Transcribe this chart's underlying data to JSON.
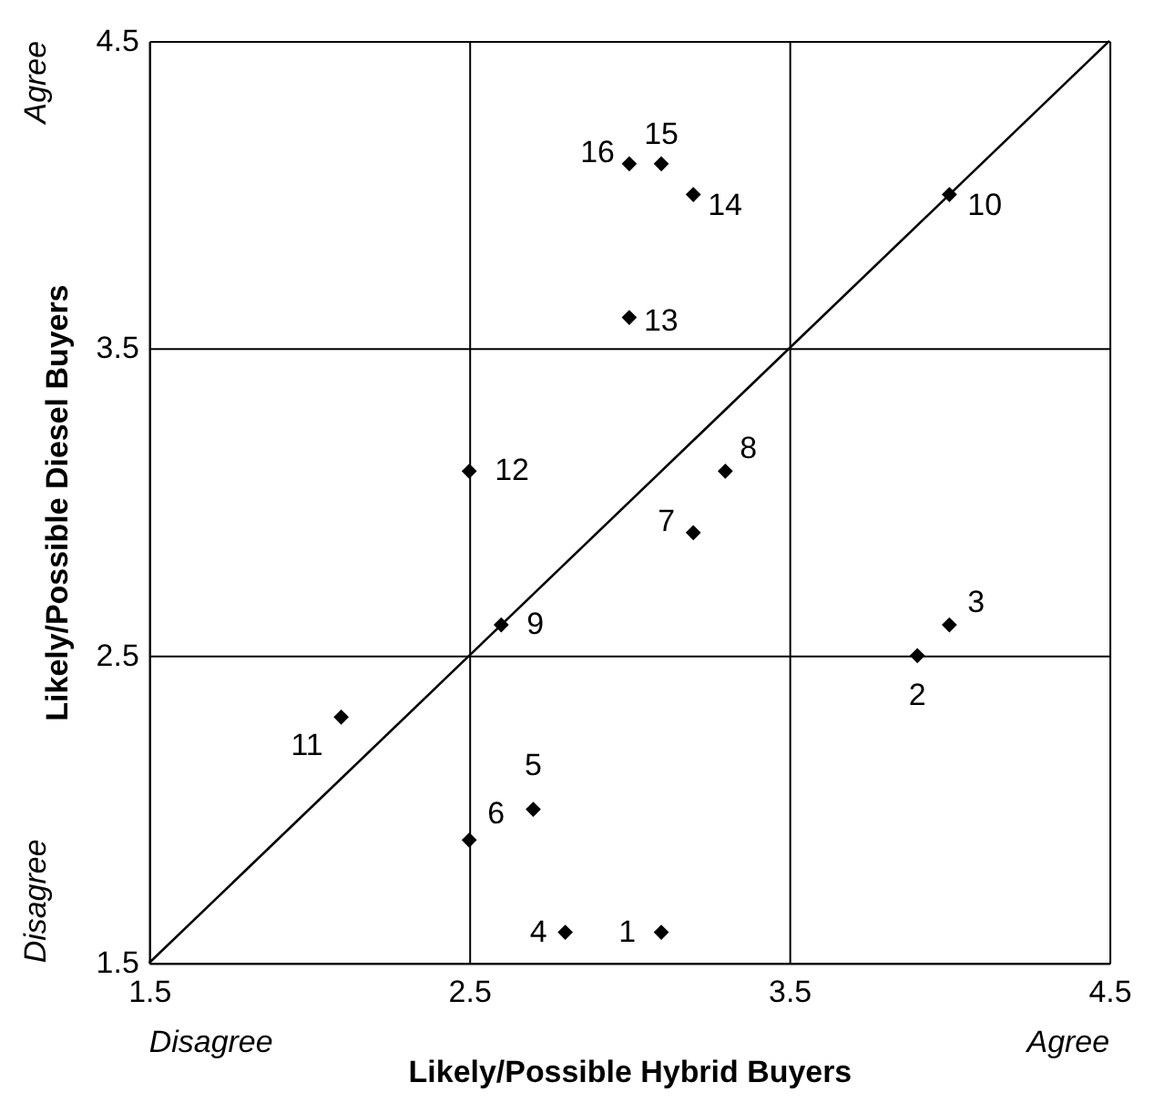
{
  "chart_data": {
    "type": "scatter",
    "xlabel": "Likely/Possible Hybrid Buyers",
    "ylabel": "Likely/Possible Diesel Buyers",
    "xlim": [
      1.5,
      4.5
    ],
    "ylim": [
      1.5,
      4.5
    ],
    "xticks": [
      1.5,
      2.5,
      3.5,
      4.5
    ],
    "yticks": [
      1.5,
      2.5,
      3.5,
      4.5
    ],
    "grid": true,
    "marker": "diamond",
    "series": [
      {
        "color": "#000000",
        "x": [
          3.1,
          3.9,
          4.0,
          2.8,
          2.7,
          2.5,
          3.2,
          3.3,
          2.6,
          4.0,
          2.1,
          2.5,
          3.0,
          3.2,
          3.1,
          3.0
        ],
        "values": [
          1.6,
          2.5,
          2.6,
          1.6,
          2.0,
          1.9,
          2.9,
          3.1,
          2.6,
          4.0,
          2.3,
          3.1,
          3.6,
          4.0,
          4.1,
          4.1
        ]
      },
      {
        "type": "line",
        "color": "#000000",
        "x": [
          1.5,
          4.5
        ],
        "values": [
          1.5,
          4.5
        ],
        "marker": "none"
      }
    ],
    "annotations": [
      {
        "text": "1",
        "x": 3.1,
        "y": 1.6
      },
      {
        "text": "2",
        "x": 3.9,
        "y": 2.5
      },
      {
        "text": "3",
        "x": 4.0,
        "y": 2.6
      },
      {
        "text": "4",
        "x": 2.8,
        "y": 1.6
      },
      {
        "text": "5",
        "x": 2.7,
        "y": 2.0
      },
      {
        "text": "6",
        "x": 2.5,
        "y": 1.9
      },
      {
        "text": "7",
        "x": 3.2,
        "y": 2.9
      },
      {
        "text": "8",
        "x": 3.3,
        "y": 3.1
      },
      {
        "text": "9",
        "x": 2.6,
        "y": 2.6
      },
      {
        "text": "10",
        "x": 4.0,
        "y": 4.0
      },
      {
        "text": "11",
        "x": 2.1,
        "y": 2.3
      },
      {
        "text": "12",
        "x": 2.5,
        "y": 3.1
      },
      {
        "text": "13",
        "x": 3.0,
        "y": 3.6
      },
      {
        "text": "14",
        "x": 3.2,
        "y": 4.0
      },
      {
        "text": "15",
        "x": 3.1,
        "y": 4.1
      },
      {
        "text": "16",
        "x": 3.0,
        "y": 4.1
      },
      "Agree",
      "Disagree",
      "Disagree",
      "Agree"
    ]
  }
}
